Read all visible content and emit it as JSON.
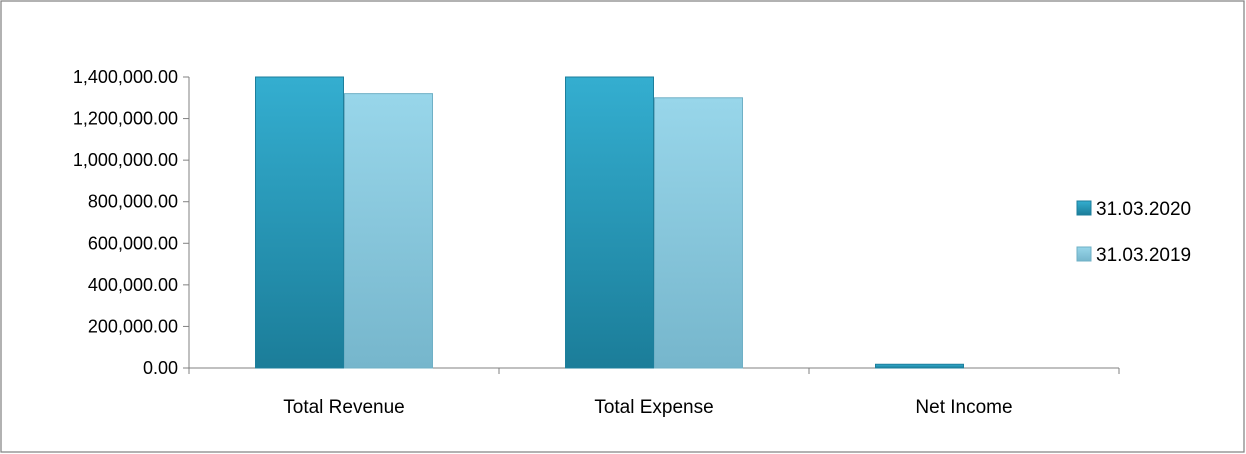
{
  "chart_data": {
    "type": "bar",
    "title": "",
    "xlabel": "",
    "ylabel": "",
    "categories": [
      "Total Revenue",
      "Total Expense",
      "Net Income"
    ],
    "series": [
      {
        "name": "31.03.2020",
        "values": [
          1400000,
          1400000,
          18000
        ]
      },
      {
        "name": "31.03.2019",
        "values": [
          1320000,
          1300000,
          0
        ]
      }
    ],
    "ylim": [
      0,
      1400000
    ],
    "y_ticks": [
      "0.00",
      "200,000.00",
      "400,000.00",
      "600,000.00",
      "800,000.00",
      "1,000,000.00",
      "1,200,000.00",
      "1,400,000.00"
    ],
    "y_tick_values": [
      0,
      200000,
      400000,
      600000,
      800000,
      1000000,
      1200000,
      1400000
    ],
    "grid": false,
    "legend_position": "right",
    "colors": {
      "series_2020": "#2fa3c4",
      "series_2020_dark": "#1d7f9c",
      "series_2019": "#92d0e4",
      "series_2019_dark": "#6fb0c6",
      "axis": "#808080",
      "border": "#7f7f7f"
    }
  }
}
